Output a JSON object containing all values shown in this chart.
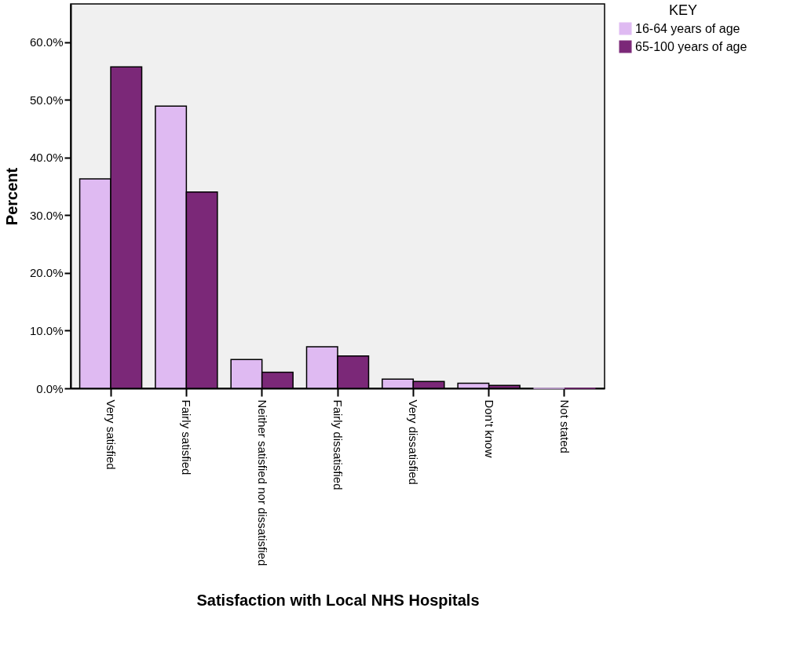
{
  "chart_data": {
    "type": "bar",
    "xlabel": "Satisfaction with Local NHS Hospitals",
    "ylabel": "Percent",
    "legend_title": "KEY",
    "categories": [
      "Very satisfied",
      "Fairly satisfied",
      "Neither satisfied nor dissatisfied",
      "Fairly dissatisfied",
      "Very dissatisfied",
      "Don't know",
      "Not stated"
    ],
    "series": [
      {
        "name": "16-64 years of age",
        "color": "#dfbaf2",
        "values": [
          36.3,
          48.9,
          5.0,
          7.2,
          1.6,
          0.9,
          0
        ]
      },
      {
        "name": "65-100 years of age",
        "color": "#7b2878",
        "values": [
          55.7,
          34.0,
          2.8,
          5.6,
          1.2,
          0.5,
          0
        ]
      }
    ],
    "ylim": [
      0,
      66.6
    ],
    "yticks": [
      {
        "value": 0,
        "label": "0.0%"
      },
      {
        "value": 10,
        "label": "10.0%"
      },
      {
        "value": 20,
        "label": "20.0%"
      },
      {
        "value": 30,
        "label": "30.0%"
      },
      {
        "value": 40,
        "label": "40.0%"
      },
      {
        "value": 50,
        "label": "50.0%"
      },
      {
        "value": 60,
        "label": "60.0%"
      }
    ],
    "grid": false,
    "legend": "top right"
  }
}
